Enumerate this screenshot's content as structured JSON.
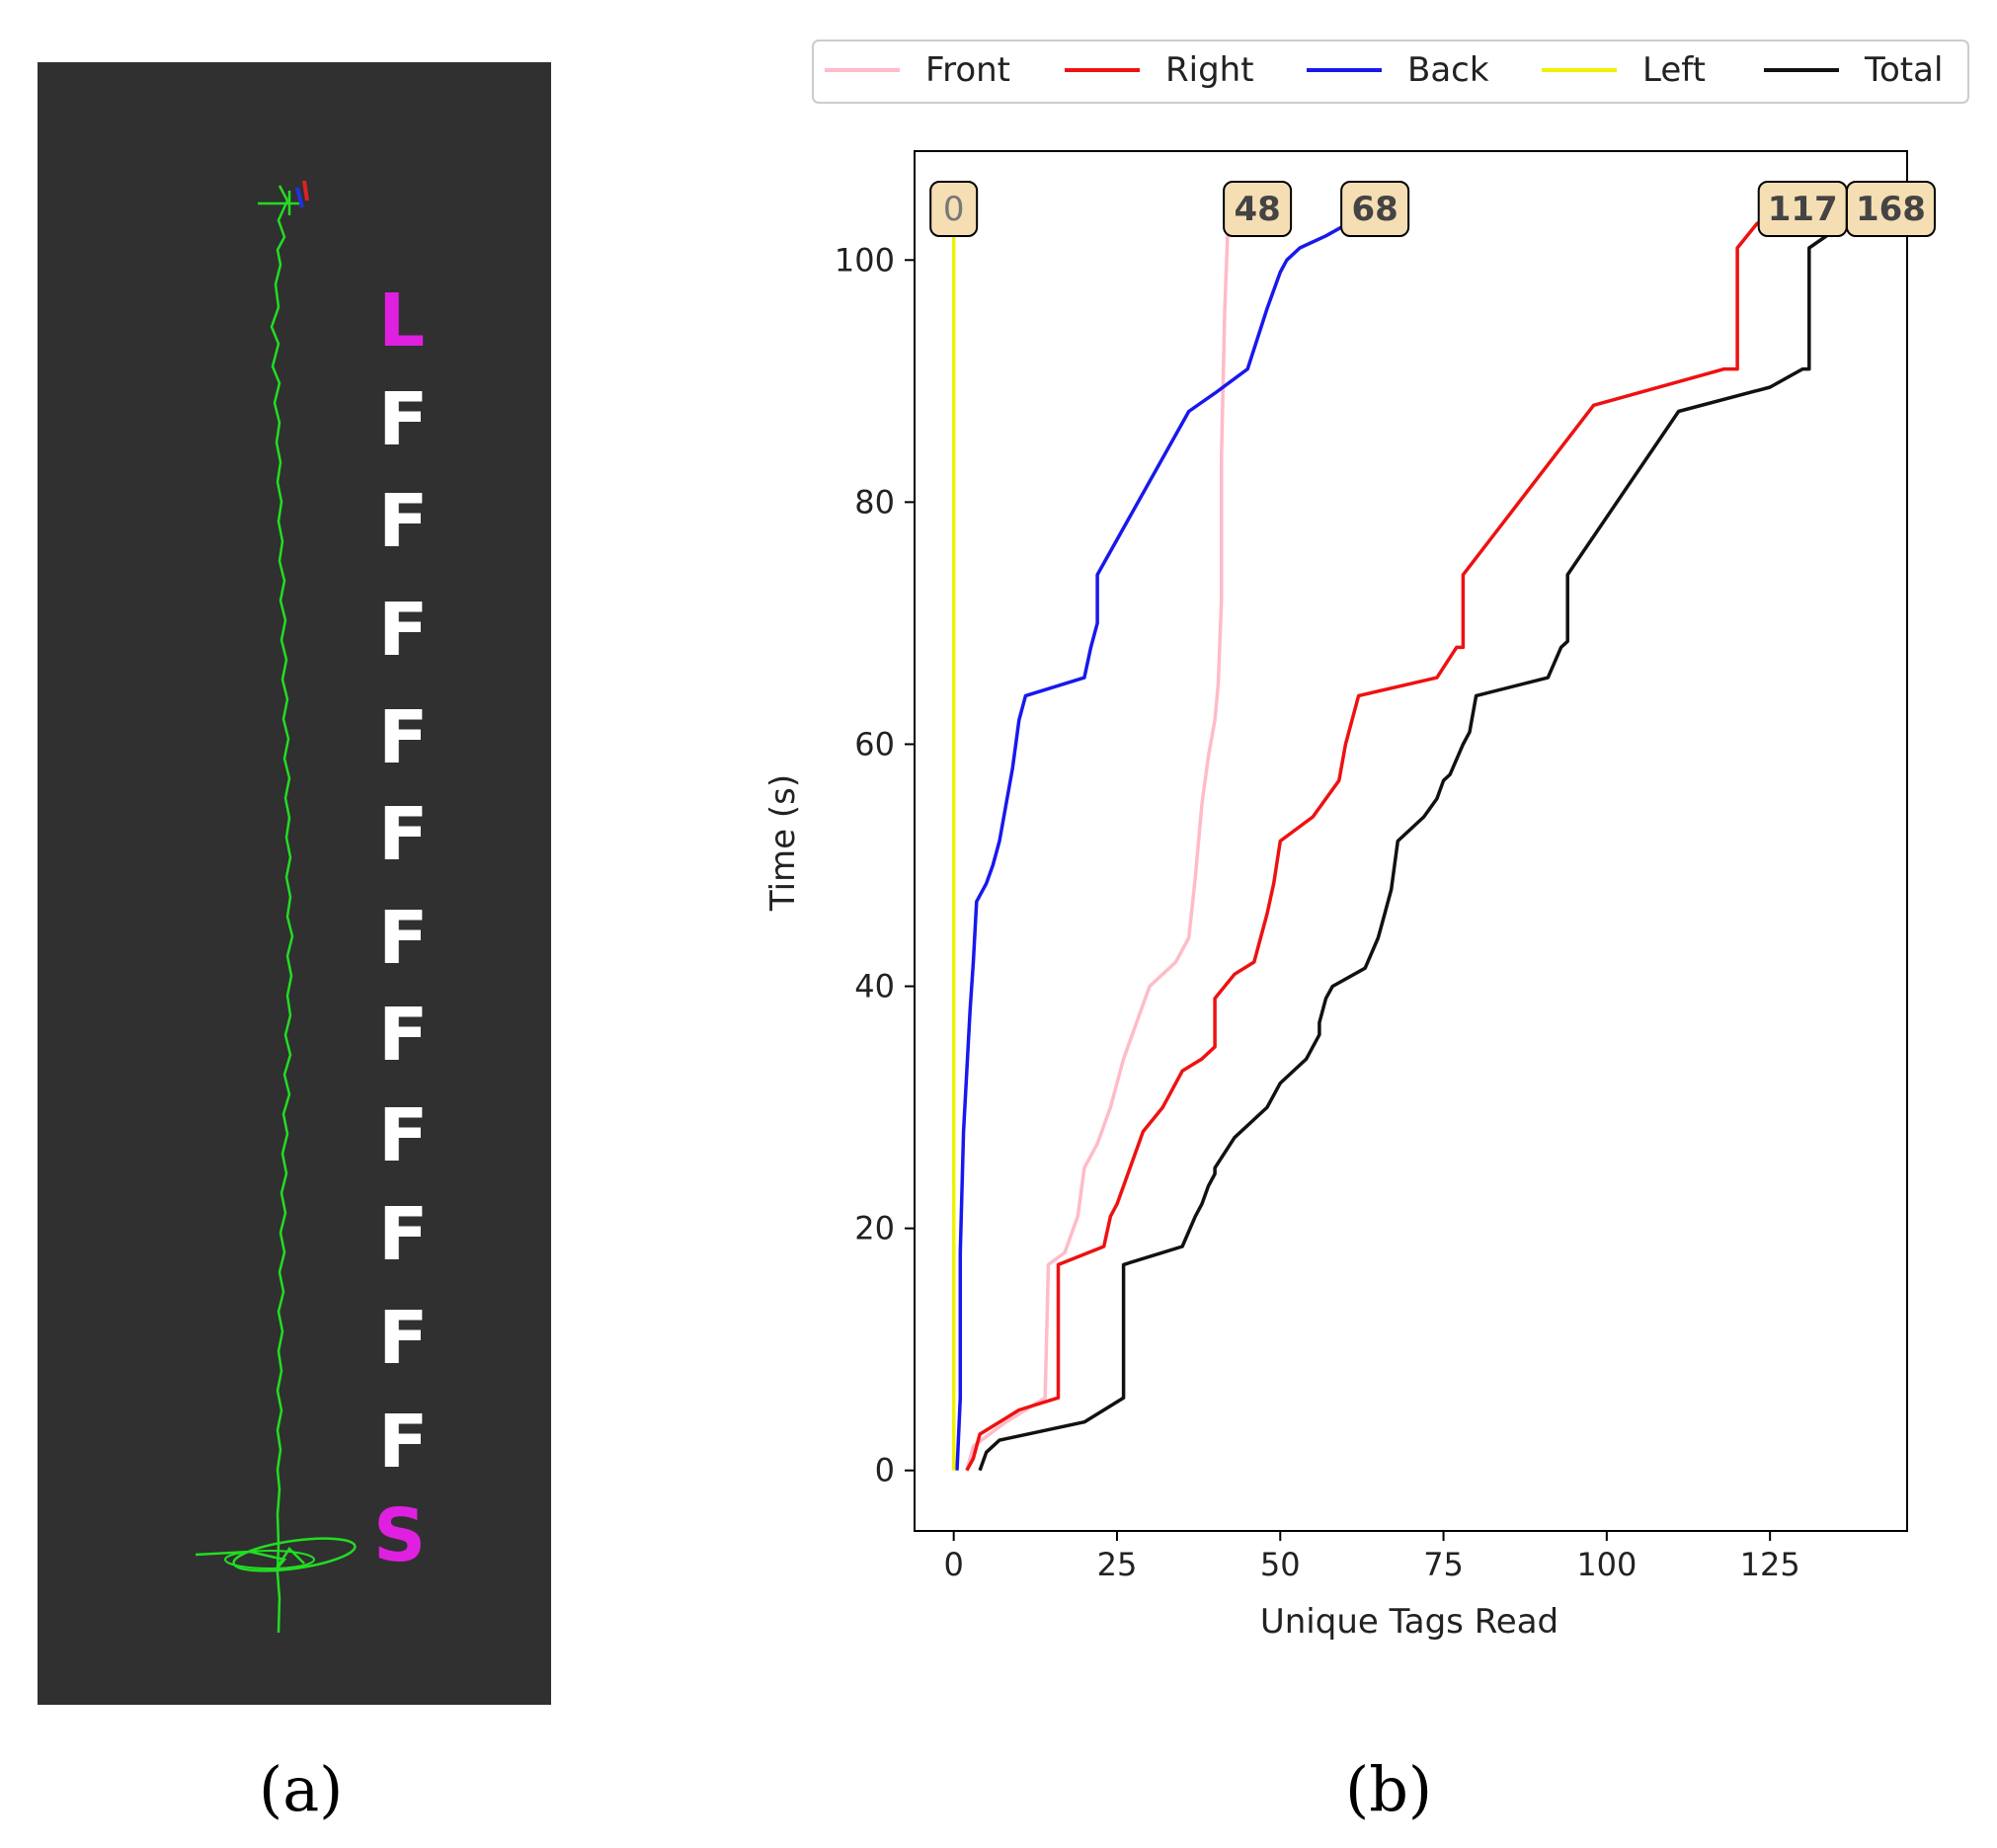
{
  "panel_a": {
    "caption": "(a)",
    "background": "#303030",
    "path_color": "#22dd22",
    "sequence": [
      {
        "letter": "L",
        "color": "#e020e0"
      },
      {
        "letter": "F",
        "color": "#ffffff"
      },
      {
        "letter": "F",
        "color": "#ffffff"
      },
      {
        "letter": "F",
        "color": "#ffffff"
      },
      {
        "letter": "F",
        "color": "#ffffff"
      },
      {
        "letter": "F",
        "color": "#ffffff"
      },
      {
        "letter": "F",
        "color": "#ffffff"
      },
      {
        "letter": "F",
        "color": "#ffffff"
      },
      {
        "letter": "F",
        "color": "#ffffff"
      },
      {
        "letter": "F",
        "color": "#ffffff"
      },
      {
        "letter": "F",
        "color": "#ffffff"
      },
      {
        "letter": "F",
        "color": "#ffffff"
      },
      {
        "letter": "S",
        "color": "#e020e0"
      }
    ]
  },
  "panel_b": {
    "caption": "(b)"
  },
  "chart_data": {
    "type": "line",
    "xlabel": "Unique Tags Read",
    "ylabel": "Time (s)",
    "xlim": [
      -6,
      146
    ],
    "ylim": [
      -5,
      109
    ],
    "xticks": [
      0,
      25,
      50,
      75,
      100,
      125
    ],
    "yticks": [
      0,
      20,
      40,
      60,
      80,
      100
    ],
    "grid": false,
    "legend_position": "top",
    "series": [
      {
        "name": "Front",
        "color": "#ffbbc8",
        "end_label": "48",
        "points": [
          [
            2,
            0
          ],
          [
            3,
            2
          ],
          [
            8,
            4
          ],
          [
            14,
            6
          ],
          [
            14.5,
            17
          ],
          [
            17,
            18
          ],
          [
            19,
            21
          ],
          [
            20,
            25
          ],
          [
            22,
            27
          ],
          [
            24,
            30
          ],
          [
            26,
            34
          ],
          [
            28,
            37
          ],
          [
            30,
            40
          ],
          [
            32,
            41
          ],
          [
            34,
            42
          ],
          [
            36,
            44
          ],
          [
            37,
            49
          ],
          [
            38,
            55
          ],
          [
            39,
            59
          ],
          [
            40,
            62
          ],
          [
            40.5,
            65
          ],
          [
            41,
            72
          ],
          [
            41,
            84
          ],
          [
            41.5,
            96
          ],
          [
            42,
            103
          ]
        ]
      },
      {
        "name": "Right",
        "color": "#ee1111",
        "end_label": "117",
        "points": [
          [
            2,
            0
          ],
          [
            3,
            1
          ],
          [
            4,
            3
          ],
          [
            10,
            5
          ],
          [
            16,
            6
          ],
          [
            16,
            17
          ],
          [
            23,
            18.5
          ],
          [
            24,
            21
          ],
          [
            25,
            22
          ],
          [
            27,
            25
          ],
          [
            29,
            28
          ],
          [
            32,
            30
          ],
          [
            35,
            33
          ],
          [
            38,
            34
          ],
          [
            40,
            35
          ],
          [
            40,
            39
          ],
          [
            43,
            41
          ],
          [
            46,
            42
          ],
          [
            47,
            44
          ],
          [
            48,
            46
          ],
          [
            49,
            48.5
          ],
          [
            50,
            52
          ],
          [
            55,
            54
          ],
          [
            59,
            57
          ],
          [
            60,
            60
          ],
          [
            62,
            64
          ],
          [
            74,
            65.5
          ],
          [
            77,
            68
          ],
          [
            78,
            68
          ],
          [
            78,
            74
          ],
          [
            98,
            88
          ],
          [
            118,
            91
          ],
          [
            120,
            91
          ],
          [
            120,
            101
          ],
          [
            123,
            103
          ],
          [
            126,
            104
          ]
        ]
      },
      {
        "name": "Back",
        "color": "#1818ee",
        "end_label": "68",
        "points": [
          [
            0.5,
            0
          ],
          [
            1,
            6
          ],
          [
            1,
            18
          ],
          [
            1.5,
            28
          ],
          [
            2,
            33
          ],
          [
            2.5,
            38
          ],
          [
            3,
            42
          ],
          [
            3.5,
            47
          ],
          [
            5,
            48.5
          ],
          [
            6,
            50
          ],
          [
            7,
            52
          ],
          [
            8,
            55
          ],
          [
            9,
            58
          ],
          [
            10,
            62
          ],
          [
            11,
            64
          ],
          [
            20,
            65.5
          ],
          [
            21,
            68
          ],
          [
            22,
            70
          ],
          [
            22,
            74
          ],
          [
            36,
            87.5
          ],
          [
            40,
            89
          ],
          [
            45,
            91
          ],
          [
            48,
            96
          ],
          [
            50,
            99
          ],
          [
            51,
            100
          ],
          [
            53,
            101
          ],
          [
            57,
            102
          ],
          [
            62,
            103.5
          ],
          [
            63,
            104
          ]
        ]
      },
      {
        "name": "Left",
        "color": "#f0f000",
        "end_label": "0",
        "points": [
          [
            0,
            0
          ],
          [
            0,
            104
          ]
        ]
      },
      {
        "name": "Total",
        "color": "#111111",
        "end_label": "168",
        "points": [
          [
            4,
            0
          ],
          [
            5,
            1.5
          ],
          [
            7,
            2.5
          ],
          [
            20,
            4
          ],
          [
            26,
            6
          ],
          [
            26,
            17
          ],
          [
            35,
            18.5
          ],
          [
            37,
            21
          ],
          [
            38,
            22
          ],
          [
            39,
            23.5
          ],
          [
            40,
            24.5
          ],
          [
            40,
            25
          ],
          [
            43,
            27.5
          ],
          [
            48,
            30
          ],
          [
            50,
            32
          ],
          [
            54,
            34
          ],
          [
            56,
            36
          ],
          [
            56,
            37
          ],
          [
            57,
            39
          ],
          [
            58,
            40
          ],
          [
            63,
            41.5
          ],
          [
            65,
            44
          ],
          [
            66,
            46
          ],
          [
            67,
            48
          ],
          [
            68,
            52
          ],
          [
            72,
            54
          ],
          [
            74,
            55.5
          ],
          [
            75,
            57
          ],
          [
            76,
            57.5
          ],
          [
            78,
            60
          ],
          [
            79,
            61
          ],
          [
            80,
            64
          ],
          [
            91,
            65.5
          ],
          [
            93,
            68
          ],
          [
            94,
            68.5
          ],
          [
            94,
            74
          ],
          [
            111,
            87.5
          ],
          [
            125,
            89.5
          ],
          [
            130,
            91
          ],
          [
            131,
            91
          ],
          [
            131,
            101
          ],
          [
            135,
            102.5
          ],
          [
            138,
            103
          ]
        ]
      }
    ]
  }
}
